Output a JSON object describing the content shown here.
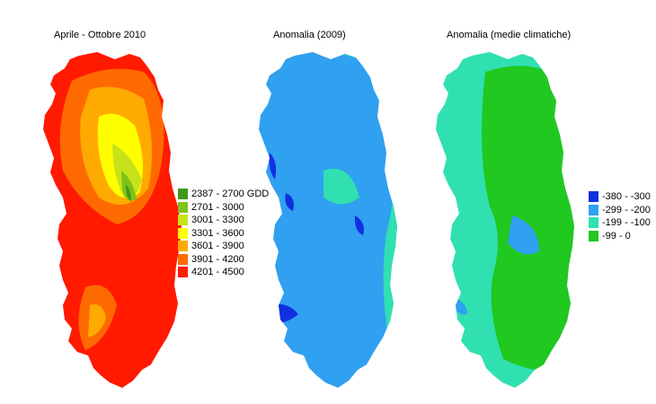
{
  "panels": [
    {
      "title": "Aprile - Ottobre 2010"
    },
    {
      "title": "Anomalia (2009)"
    },
    {
      "title": "Anomalia (medie climatiche)"
    }
  ],
  "legend_gdd": {
    "items": [
      {
        "label": "2387 - 2700 GDD",
        "color": "#3f9a1a"
      },
      {
        "label": "2701 - 3000",
        "color": "#7fc21a"
      },
      {
        "label": "3001 - 3300",
        "color": "#c7e21a"
      },
      {
        "label": "3301 - 3600",
        "color": "#ffff00"
      },
      {
        "label": "3601 - 3900",
        "color": "#ffaa00"
      },
      {
        "label": "3901 - 4200",
        "color": "#ff6a00"
      },
      {
        "label": "4201 - 4500",
        "color": "#ff1a00"
      }
    ]
  },
  "legend_anomaly": {
    "items": [
      {
        "label": "-380 - -300",
        "color": "#1030e0"
      },
      {
        "label": "-299 - -200",
        "color": "#30a0f0"
      },
      {
        "label": "-199 - -100",
        "color": "#30e0b0"
      },
      {
        "label": "-99 - 0",
        "color": "#20c820"
      }
    ]
  }
}
